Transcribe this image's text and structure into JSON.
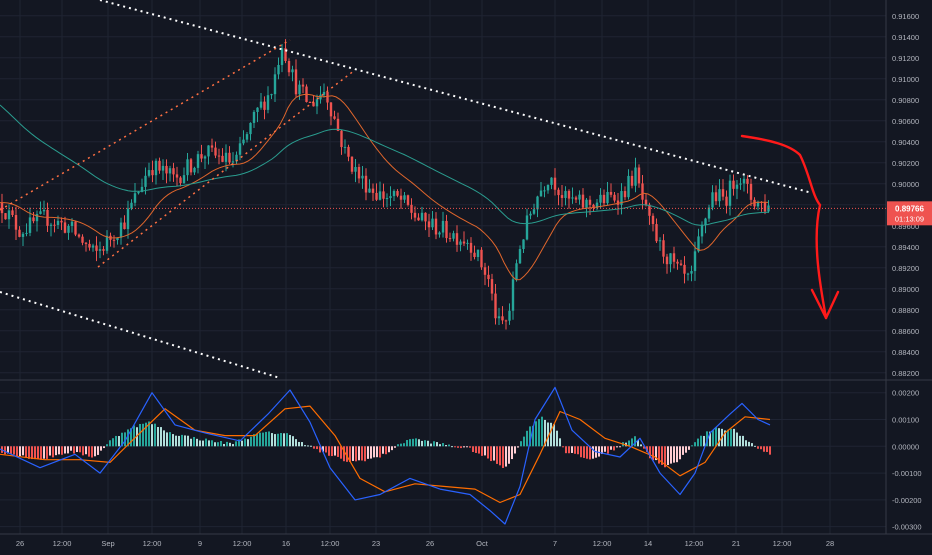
{
  "colors": {
    "background": "#131722",
    "grid": "#1f2433",
    "up": "#26a69a",
    "down": "#ef5350",
    "axis_text": "#b2b5be",
    "ema_fast": "#e0662c",
    "ema_slow": "#2a9d8f",
    "macd": "#2962ff",
    "signal": "#ff6d00",
    "trendline": "#ffffff",
    "channel": "#ff7043",
    "drawing": "#ff1a1a",
    "price_label_bg": "#ef5350",
    "separator": "#363a45"
  },
  "chart_data": [
    {
      "type": "candlestick",
      "name": "price",
      "ylim": [
        0.8815,
        0.9175
      ],
      "y_ticks": [
        "0.91600",
        "0.91400",
        "0.91200",
        "0.91000",
        "0.90800",
        "0.90600",
        "0.90400",
        "0.90200",
        "0.90000",
        "0.89800",
        "0.89600",
        "0.89400",
        "0.89200",
        "0.89000",
        "0.88800",
        "0.88600",
        "0.88400",
        "0.88200"
      ],
      "x_ticks": [
        "26",
        "12:00",
        "Sep",
        "12:00",
        "9",
        "12:00",
        "16",
        "12:00",
        "23",
        "26",
        "Oct",
        "7",
        "12:00",
        "14",
        "12:00",
        "21",
        "12:00",
        "28"
      ],
      "last_price": "0.89766",
      "countdown": "01:13:09",
      "path_points": [
        [
          0,
          0.8982
        ],
        [
          20,
          0.8955
        ],
        [
          45,
          0.8968
        ],
        [
          70,
          0.8958
        ],
        [
          95,
          0.8932
        ],
        [
          125,
          0.8965
        ],
        [
          150,
          0.9018
        ],
        [
          175,
          0.9005
        ],
        [
          205,
          0.903
        ],
        [
          235,
          0.902
        ],
        [
          258,
          0.907
        ],
        [
          272,
          0.909
        ],
        [
          282,
          0.9135
        ],
        [
          295,
          0.9095
        ],
        [
          310,
          0.9075
        ],
        [
          325,
          0.909
        ],
        [
          345,
          0.903
        ],
        [
          360,
          0.9005
        ],
        [
          378,
          0.899
        ],
        [
          400,
          0.8985
        ],
        [
          420,
          0.8965
        ],
        [
          445,
          0.8955
        ],
        [
          470,
          0.8945
        ],
        [
          488,
          0.891
        ],
        [
          498,
          0.8865
        ],
        [
          508,
          0.887
        ],
        [
          518,
          0.8935
        ],
        [
          535,
          0.8985
        ],
        [
          550,
          0.901
        ],
        [
          565,
          0.8985
        ],
        [
          585,
          0.898
        ],
        [
          605,
          0.8985
        ],
        [
          622,
          0.899
        ],
        [
          635,
          0.901
        ],
        [
          648,
          0.8965
        ],
        [
          660,
          0.894
        ],
        [
          675,
          0.892
        ],
        [
          690,
          0.8905
        ],
        [
          700,
          0.895
        ],
        [
          712,
          0.899
        ],
        [
          725,
          0.8985
        ],
        [
          738,
          0.901
        ],
        [
          752,
          0.8985
        ],
        [
          770,
          0.8977
        ]
      ]
    },
    {
      "type": "macd",
      "name": "oscillator",
      "ylim": [
        -0.0032,
        0.0024
      ],
      "y_ticks": [
        "0.00200",
        "0.00100",
        "0.00000",
        "-0.00100",
        "-0.00200",
        "-0.00300"
      ],
      "hist_points": [
        [
          0,
          -0.0002
        ],
        [
          40,
          -0.0005
        ],
        [
          70,
          -0.0002
        ],
        [
          95,
          -0.0004
        ],
        [
          110,
          0.0002
        ],
        [
          130,
          0.0007
        ],
        [
          150,
          0.0009
        ],
        [
          170,
          0.0005
        ],
        [
          195,
          0.0003
        ],
        [
          230,
          0.0001
        ],
        [
          262,
          0.0005
        ],
        [
          285,
          0.0005
        ],
        [
          300,
          0.0002
        ],
        [
          320,
          -0.0002
        ],
        [
          350,
          -0.0006
        ],
        [
          380,
          -0.0004
        ],
        [
          410,
          0.0003
        ],
        [
          440,
          0.0001
        ],
        [
          470,
          -0.0001
        ],
        [
          495,
          -0.0006
        ],
        [
          505,
          -0.0008
        ],
        [
          515,
          -0.0003
        ],
        [
          525,
          0.0005
        ],
        [
          540,
          0.0011
        ],
        [
          555,
          0.0008
        ],
        [
          565,
          -0.0002
        ],
        [
          590,
          -0.0005
        ],
        [
          615,
          -0.0001
        ],
        [
          635,
          0.0004
        ],
        [
          650,
          -0.0004
        ],
        [
          665,
          -0.0008
        ],
        [
          680,
          -0.0005
        ],
        [
          695,
          0.0002
        ],
        [
          715,
          0.0007
        ],
        [
          735,
          0.0006
        ],
        [
          750,
          0.0001
        ],
        [
          770,
          -0.0003
        ]
      ],
      "macd_points": [
        [
          0,
          -0.0001
        ],
        [
          40,
          -0.0008
        ],
        [
          75,
          -0.0003
        ],
        [
          100,
          -0.001
        ],
        [
          125,
          0.0002
        ],
        [
          152,
          0.002
        ],
        [
          175,
          0.0008
        ],
        [
          205,
          0.0005
        ],
        [
          240,
          0.0002
        ],
        [
          268,
          0.0012
        ],
        [
          290,
          0.0021
        ],
        [
          310,
          0.0009
        ],
        [
          330,
          -0.0008
        ],
        [
          355,
          -0.002
        ],
        [
          380,
          -0.0018
        ],
        [
          410,
          -0.0012
        ],
        [
          440,
          -0.0016
        ],
        [
          470,
          -0.0018
        ],
        [
          490,
          -0.0024
        ],
        [
          505,
          -0.0029
        ],
        [
          520,
          -0.0015
        ],
        [
          535,
          0.001
        ],
        [
          555,
          0.0022
        ],
        [
          572,
          0.0006
        ],
        [
          595,
          -0.0002
        ],
        [
          620,
          -0.0004
        ],
        [
          640,
          0.0003
        ],
        [
          660,
          -0.001
        ],
        [
          680,
          -0.0018
        ],
        [
          695,
          -0.001
        ],
        [
          710,
          0.0005
        ],
        [
          730,
          0.0012
        ],
        [
          742,
          0.0016
        ],
        [
          758,
          0.001
        ],
        [
          770,
          0.0008
        ]
      ],
      "signal_points": [
        [
          0,
          -0.0003
        ],
        [
          45,
          -0.0005
        ],
        [
          80,
          -0.0005
        ],
        [
          110,
          -0.0006
        ],
        [
          140,
          0.0005
        ],
        [
          165,
          0.0014
        ],
        [
          195,
          0.0006
        ],
        [
          225,
          0.0004
        ],
        [
          255,
          0.0004
        ],
        [
          285,
          0.0014
        ],
        [
          310,
          0.0015
        ],
        [
          335,
          0.0004
        ],
        [
          360,
          -0.0012
        ],
        [
          385,
          -0.0017
        ],
        [
          415,
          -0.0014
        ],
        [
          445,
          -0.0015
        ],
        [
          475,
          -0.0016
        ],
        [
          500,
          -0.0021
        ],
        [
          520,
          -0.0018
        ],
        [
          540,
          -0.0003
        ],
        [
          560,
          0.0013
        ],
        [
          580,
          0.001
        ],
        [
          605,
          0.0003
        ],
        [
          630,
          0.0
        ],
        [
          655,
          -0.0004
        ],
        [
          680,
          -0.0011
        ],
        [
          705,
          -0.0006
        ],
        [
          725,
          0.0005
        ],
        [
          745,
          0.0011
        ],
        [
          770,
          0.001
        ]
      ]
    }
  ]
}
